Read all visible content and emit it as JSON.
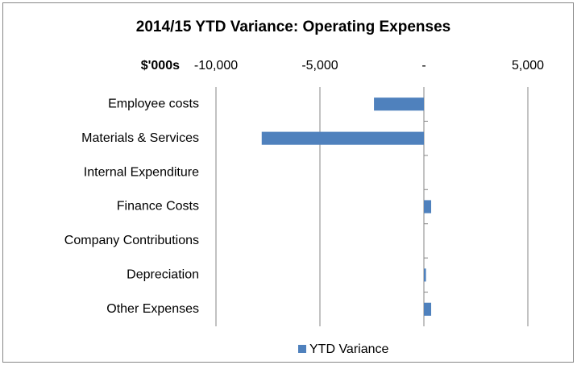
{
  "chart_data": {
    "type": "hbar",
    "title": "2014/15 YTD Variance:  Operating Expenses",
    "axis_label": "$'000s",
    "categories": [
      "Employee costs",
      "Materials & Services",
      "Internal Expenditure",
      "Finance Costs",
      "Company Contributions",
      "Depreciation",
      "Other Expenses"
    ],
    "series": [
      {
        "name": "YTD Variance",
        "color": "#4f81bd",
        "values": [
          -2400,
          -7800,
          0,
          350,
          0,
          100,
          350
        ]
      }
    ],
    "xlim": [
      -10000,
      5000
    ],
    "xticks": [
      {
        "value": -10000,
        "label": "-10,000"
      },
      {
        "value": -5000,
        "label": "-5,000"
      },
      {
        "value": 0,
        "label": "-"
      },
      {
        "value": 5000,
        "label": "5,000"
      }
    ],
    "grid": true,
    "legend": "bottom"
  }
}
